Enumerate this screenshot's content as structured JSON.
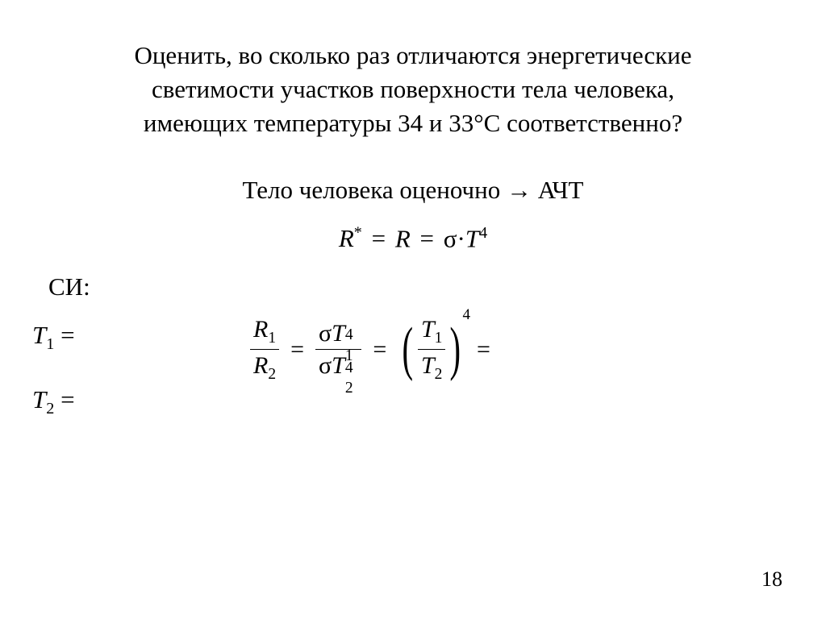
{
  "title": {
    "line1": "Оценить, во сколько раз отличаются энергетические",
    "line2": "светимости участков поверхности тела человека,",
    "line3": "имеющих температуры 34 и 33°С соответственно?"
  },
  "body_line": "Тело человека оценочно → АЧТ",
  "eq1": {
    "lhs_sym": "R",
    "lhs_sup": "*",
    "eq": "=",
    "mid_sym": "R",
    "sigma": "σ",
    "dot": "·",
    "T": "T",
    "pow": "4"
  },
  "si_label": "СИ:",
  "t1_label": "T",
  "t1_sub": "1",
  "t1_eq": " = ",
  "t2_label": "T",
  "t2_sub": "2",
  "t2_eq": " = ",
  "eq2": {
    "R": "R",
    "sub1": "1",
    "sub2": "2",
    "eq": "=",
    "sigma": "σ",
    "T": "T",
    "pow": "4"
  },
  "page_number": "18",
  "style": {
    "background": "#ffffff",
    "text_color": "#000000",
    "title_fontsize": 31,
    "body_fontsize": 31,
    "eq_fontsize": 30,
    "pagenum_fontsize": 26,
    "font_family": "Times New Roman"
  }
}
